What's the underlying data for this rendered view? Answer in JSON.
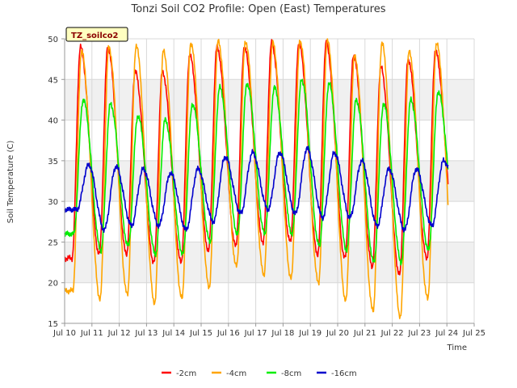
{
  "chart_data": {
    "type": "line",
    "title": "Tonzi Soil CO2 Profile: Open (East) Temperatures",
    "xlabel": "Time",
    "ylabel": "Soil Temperature (C)",
    "badge": "TZ_soilco2",
    "ylim": [
      15,
      50
    ],
    "yticks": [
      15,
      20,
      25,
      30,
      35,
      40,
      45,
      50
    ],
    "xlim": [
      10,
      25
    ],
    "xticks": [
      10,
      11,
      12,
      13,
      14,
      15,
      16,
      17,
      18,
      19,
      20,
      21,
      22,
      23,
      24,
      25
    ],
    "xtick_labels": [
      "Jul 10",
      "Jul 11",
      "Jul 12",
      "Jul 13",
      "Jul 14",
      "Jul 15",
      "Jul 16",
      "Jul 17",
      "Jul 18",
      "Jul 19",
      "Jul 20",
      "Jul 21",
      "Jul 22",
      "Jul 23",
      "Jul 24",
      "Jul 25"
    ],
    "grid": true,
    "legend_position": "bottom",
    "series": [
      {
        "name": "-2cm",
        "color": "#ff0000",
        "min": [
          23.0,
          23.5,
          23.5,
          22.5,
          22.5,
          24.0,
          24.5,
          25.0,
          25.0,
          23.5,
          23.0,
          22.0,
          21.0,
          23.0,
          27.0
        ],
        "max": [
          49.0,
          49.0,
          46.0,
          46.0,
          48.0,
          49.0,
          49.0,
          49.5,
          49.5,
          49.5,
          48.0,
          46.5,
          47.5,
          48.5
        ]
      },
      {
        "name": "-4cm",
        "color": "#ffa500",
        "min": [
          19.0,
          18.0,
          18.5,
          17.5,
          18.0,
          19.5,
          22.0,
          21.0,
          20.5,
          20.0,
          17.8,
          16.5,
          15.8,
          18.0,
          20.8
        ],
        "max": [
          48.5,
          49.0,
          49.2,
          48.5,
          49.5,
          49.7,
          49.7,
          49.5,
          49.8,
          49.8,
          48.0,
          49.5,
          48.5,
          49.5
        ]
      },
      {
        "name": "-8cm",
        "color": "#00ee00",
        "min": [
          26.0,
          24.0,
          24.5,
          23.5,
          23.5,
          25.0,
          26.0,
          26.0,
          26.0,
          24.5,
          24.0,
          22.5,
          22.5,
          24.0,
          27.0
        ],
        "max": [
          42.5,
          42.0,
          40.5,
          40.0,
          42.0,
          44.0,
          44.5,
          44.0,
          45.0,
          44.5,
          42.5,
          42.0,
          42.5,
          43.5
        ]
      },
      {
        "name": "-16cm",
        "color": "#0000cc",
        "min": [
          29.0,
          26.5,
          27.0,
          27.0,
          26.5,
          27.5,
          28.5,
          29.0,
          28.5,
          28.0,
          28.0,
          27.0,
          26.5,
          27.0,
          30.5
        ],
        "max": [
          34.5,
          34.3,
          34.0,
          33.5,
          34.0,
          35.5,
          36.0,
          36.0,
          36.5,
          36.0,
          35.0,
          34.0,
          34.0,
          35.0
        ]
      }
    ]
  }
}
